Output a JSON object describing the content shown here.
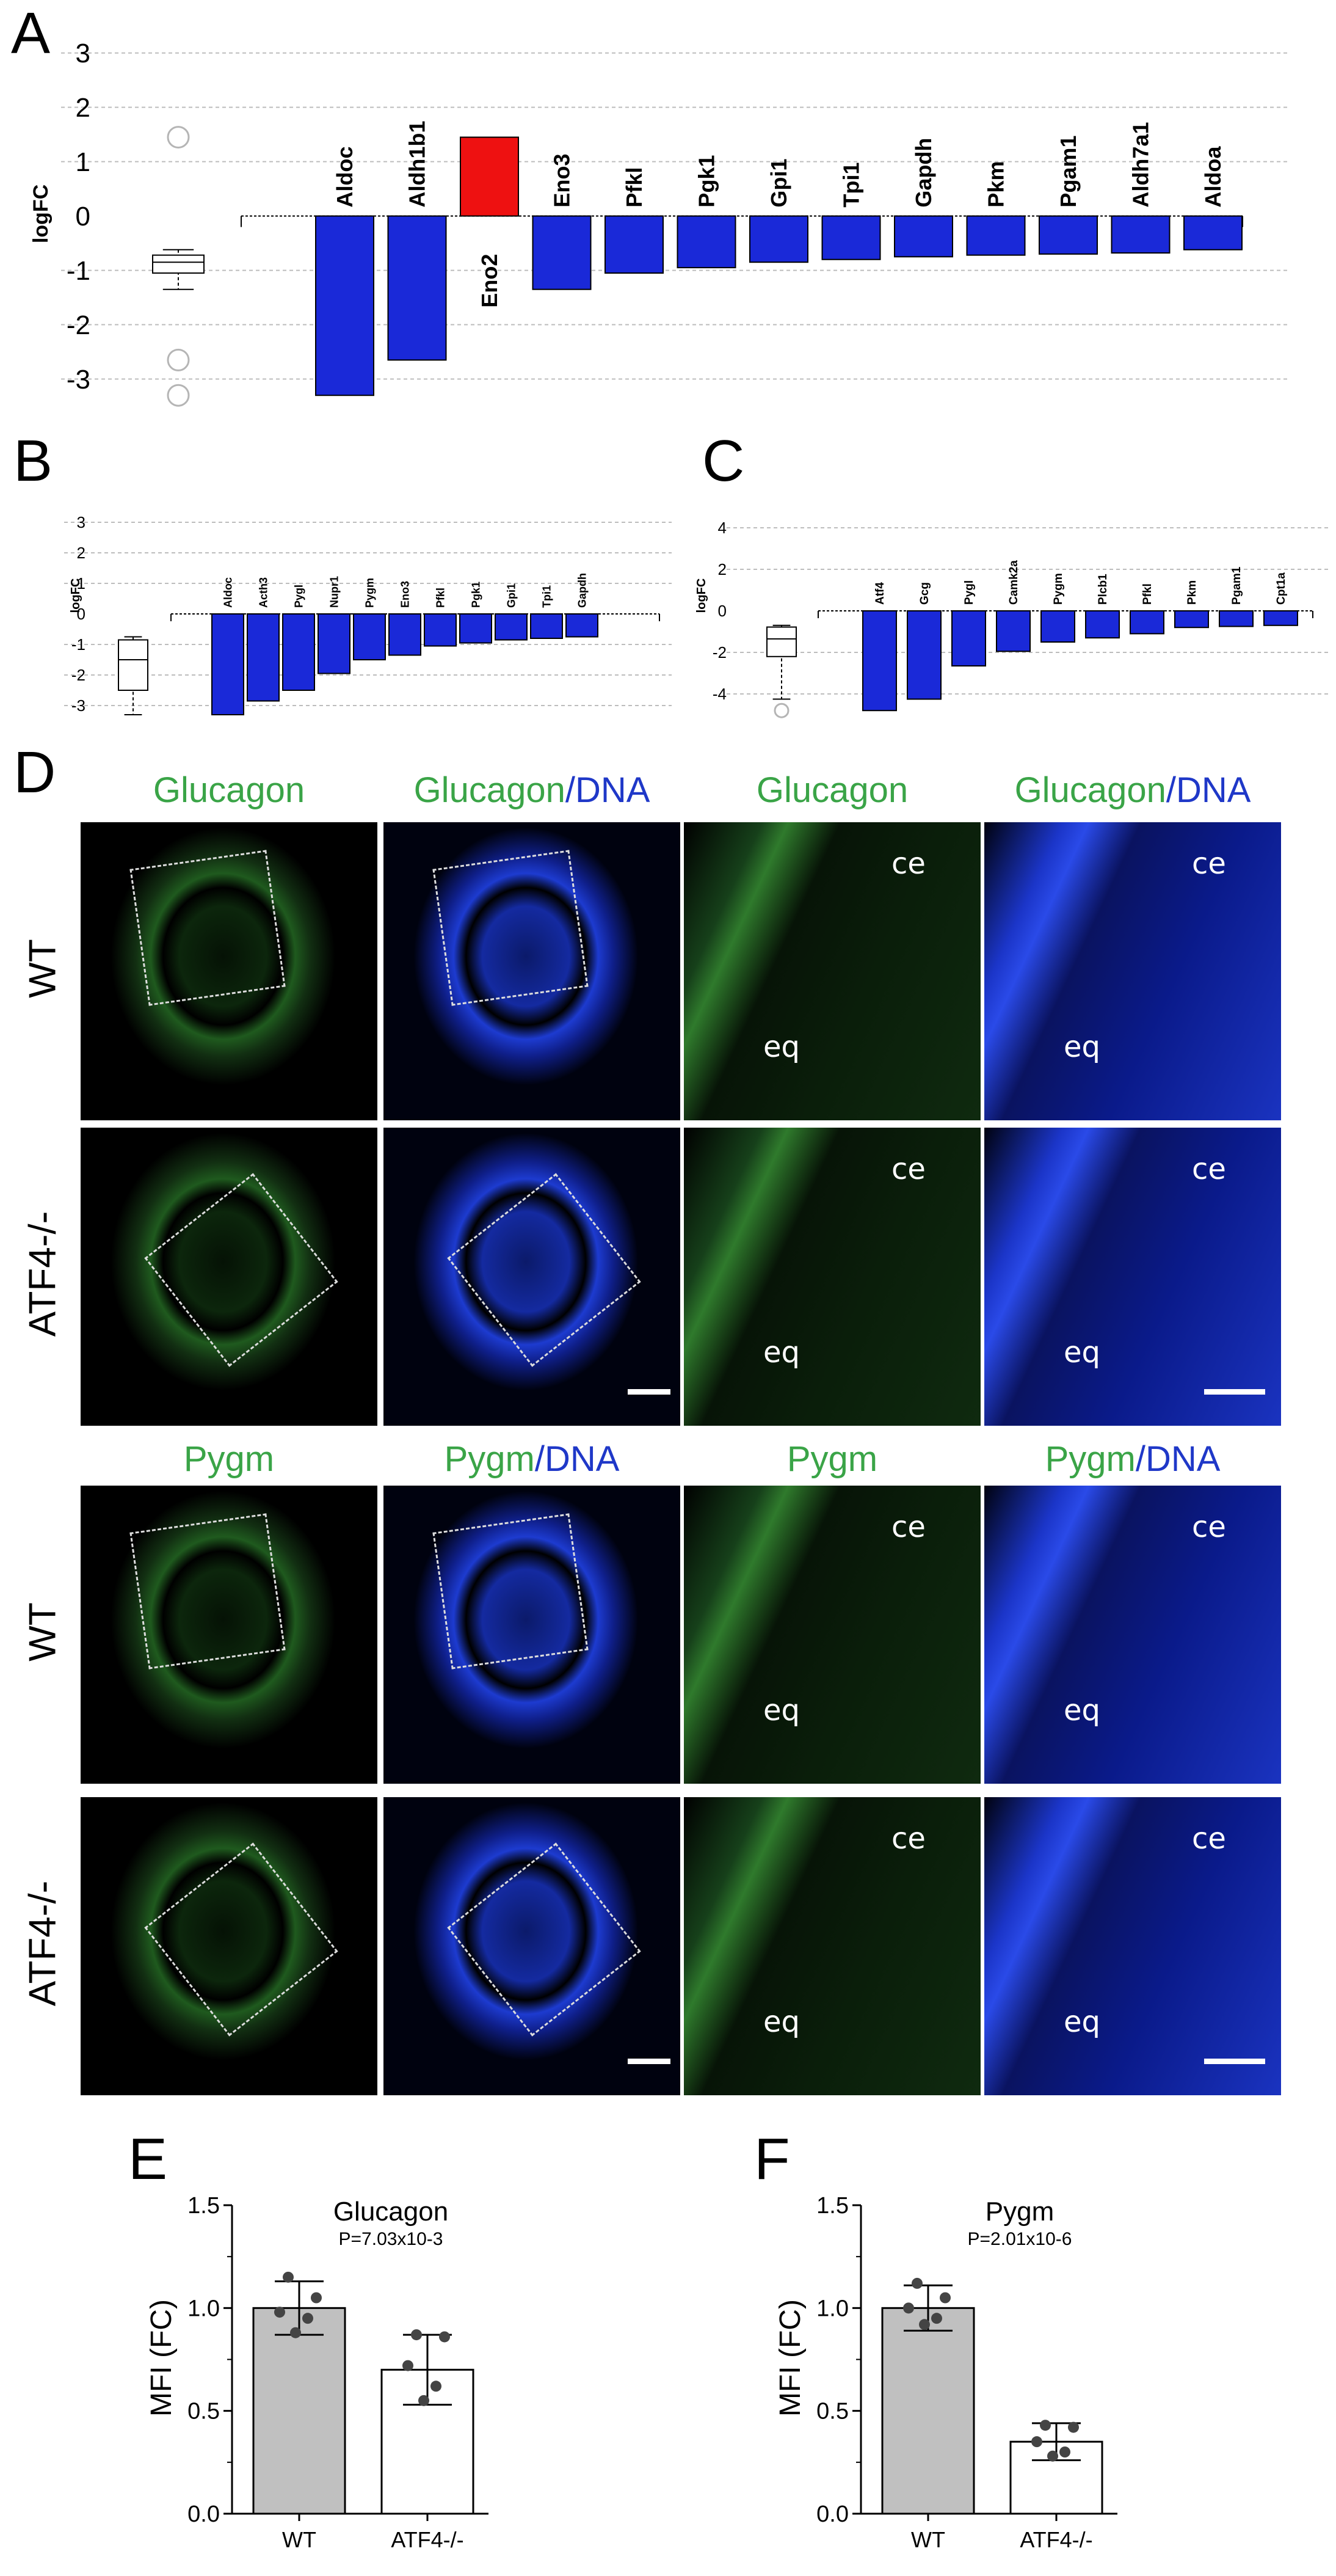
{
  "panels": {
    "A": "A",
    "B": "B",
    "C": "C",
    "D": "D",
    "E": "E",
    "F": "F"
  },
  "chart_data": [
    {
      "id": "A",
      "type": "bar",
      "ylabel": "logFC",
      "yticks": [
        "3",
        "2",
        "1",
        "0",
        "-1",
        "-2",
        "-3"
      ],
      "ylim": [
        -3.5,
        3.3
      ],
      "categories": [
        "Aldoc",
        "Aldh1b1",
        "Eno2",
        "Eno3",
        "Pfkl",
        "Pgk1",
        "Gpi1",
        "Tpi1",
        "Gapdh",
        "Pkm",
        "Pgam1",
        "Aldh7a1",
        "Aldoa"
      ],
      "values": [
        -3.3,
        -2.65,
        1.45,
        -1.35,
        -1.05,
        -0.95,
        -0.85,
        -0.8,
        -0.75,
        -0.72,
        -0.7,
        -0.68,
        -0.62
      ],
      "colors": [
        "#1a29d8",
        "#1a29d8",
        "#ee1111",
        "#1a29d8",
        "#1a29d8",
        "#1a29d8",
        "#1a29d8",
        "#1a29d8",
        "#1a29d8",
        "#1a29d8",
        "#1a29d8",
        "#1a29d8",
        "#1a29d8"
      ],
      "boxplot": {
        "min": -1.35,
        "q1": -1.05,
        "median": -0.85,
        "q3": -0.72,
        "max": -0.62,
        "outliers": [
          1.45,
          -2.65,
          -3.3
        ]
      }
    },
    {
      "id": "B",
      "type": "bar",
      "ylabel": "logFC",
      "yticks": [
        "3",
        "2",
        "1",
        "0",
        "-1",
        "-2",
        "-3"
      ],
      "ylim": [
        -3.5,
        3.3
      ],
      "categories": [
        "Aldoc",
        "Acth3",
        "Pygl",
        "Nupr1",
        "Pygm",
        "Eno3",
        "Pfkl",
        "Pgk1",
        "Gpi1",
        "Tpi1",
        "Gapdh"
      ],
      "values": [
        -3.3,
        -2.85,
        -2.5,
        -1.95,
        -1.5,
        -1.35,
        -1.05,
        -0.95,
        -0.85,
        -0.8,
        -0.75
      ],
      "boxplot": {
        "min": -3.3,
        "q1": -2.5,
        "median": -1.5,
        "q3": -0.85,
        "max": -0.75,
        "outliers": []
      }
    },
    {
      "id": "C",
      "type": "bar",
      "ylabel": "logFC",
      "yticks": [
        "4",
        "2",
        "0",
        "-2",
        "-4"
      ],
      "ylim": [
        -5,
        5
      ],
      "categories": [
        "Atf4",
        "Gcg",
        "Pygl",
        "Camk2a",
        "Pygm",
        "Plcb1",
        "Pfkl",
        "Pkm",
        "Pgam1",
        "Cpt1a"
      ],
      "values": [
        -4.8,
        -4.25,
        -2.65,
        -1.95,
        -1.5,
        -1.3,
        -1.1,
        -0.8,
        -0.75,
        -0.7
      ],
      "boxplot": {
        "min": -4.25,
        "q1": -2.2,
        "median": -1.35,
        "q3": -0.78,
        "max": -0.7,
        "outliers": [
          -4.8
        ]
      }
    },
    {
      "id": "E",
      "type": "bar",
      "title": "Glucagon",
      "subtitle": "P=7.03x10-3",
      "ylabel": "MFI (FC)",
      "yticks": [
        "0.0",
        "0.5",
        "1.0",
        "1.5"
      ],
      "ylim": [
        0,
        1.5
      ],
      "categories": [
        "WT",
        "ATF4-/-"
      ],
      "values": [
        1.0,
        0.7
      ],
      "errors": [
        0.13,
        0.17
      ],
      "points": [
        [
          1.15,
          1.05,
          0.98,
          0.95,
          0.88
        ],
        [
          0.87,
          0.86,
          0.72,
          0.62,
          0.55
        ]
      ]
    },
    {
      "id": "F",
      "type": "bar",
      "title": "Pygm",
      "subtitle": "P=2.01x10-6",
      "ylabel": "MFI (FC)",
      "yticks": [
        "0.0",
        "0.5",
        "1.0",
        "1.5"
      ],
      "ylim": [
        0,
        1.5
      ],
      "categories": [
        "WT",
        "ATF4-/-"
      ],
      "values": [
        1.0,
        0.35
      ],
      "errors": [
        0.11,
        0.09
      ],
      "points": [
        [
          1.12,
          1.05,
          1.0,
          0.95,
          0.92
        ],
        [
          0.43,
          0.42,
          0.35,
          0.3,
          0.28
        ]
      ]
    }
  ],
  "d": {
    "glucagon_titles": [
      {
        "green": "Glucagon",
        "blue": ""
      },
      {
        "green": "Glucagon",
        "blue": "/DNA"
      },
      {
        "green": "Glucagon",
        "blue": ""
      },
      {
        "green": "Glucagon",
        "blue": "/DNA"
      }
    ],
    "pygm_titles": [
      {
        "green": "Pygm",
        "blue": ""
      },
      {
        "green": "Pygm",
        "blue": "/DNA"
      },
      {
        "green": "Pygm",
        "blue": ""
      },
      {
        "green": "Pygm",
        "blue": "/DNA"
      }
    ],
    "row_labels": [
      "WT",
      "ATF4-/-",
      "WT",
      "ATF4-/-"
    ],
    "ce": "ce",
    "eq": "eq"
  }
}
